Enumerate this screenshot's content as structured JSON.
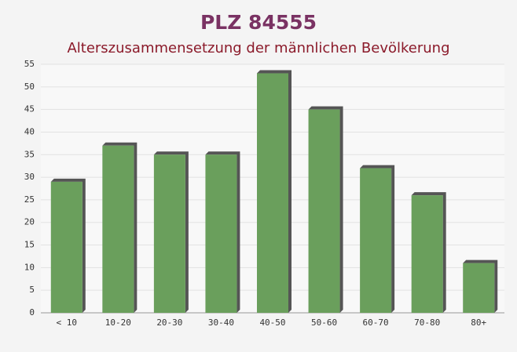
{
  "chart_data": {
    "type": "bar",
    "title": "PLZ 84555",
    "subtitle": "Alterszusammensetzung der männlichen Bevölkerung",
    "categories": [
      "< 10",
      "10-20",
      "20-30",
      "30-40",
      "40-50",
      "50-60",
      "60-70",
      "70-80",
      "80+"
    ],
    "values": [
      29,
      37,
      35,
      35,
      53,
      45,
      32,
      26,
      11
    ],
    "color": "#6a9f5c",
    "ylim": [
      0,
      55
    ],
    "yticks": [
      0,
      5,
      10,
      15,
      20,
      25,
      30,
      35,
      40,
      45,
      50,
      55
    ],
    "grid": true
  }
}
